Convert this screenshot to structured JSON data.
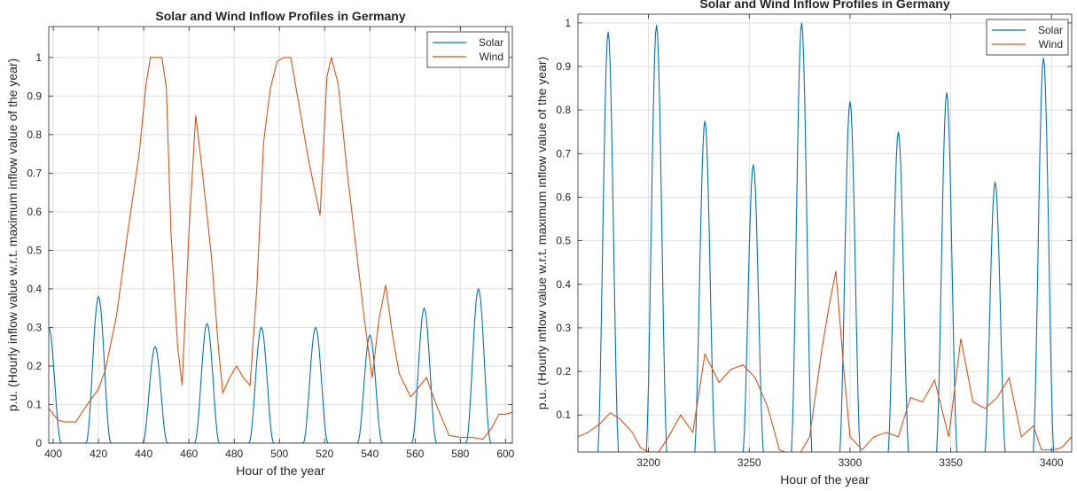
{
  "colors": {
    "solar": "#0072BD",
    "wind": "#D95319",
    "grid": "#DFDFDF",
    "axis": "#262626"
  },
  "chart_data": [
    {
      "type": "line",
      "title": "Solar and Wind Inflow Profiles in Germany",
      "xlabel": "Hour of the year",
      "ylabel": "p.u. (Hourly inflow value w.r.t. maximum inflow value of the year)",
      "xlim": [
        398,
        603
      ],
      "ylim": [
        0,
        1.08
      ],
      "xticks": [
        400,
        420,
        440,
        460,
        480,
        500,
        520,
        540,
        560,
        580,
        600
      ],
      "yticks": [
        0,
        0.1,
        0.2,
        0.3,
        0.4,
        0.5,
        0.6,
        0.7,
        0.8,
        0.9,
        1
      ],
      "grid": true,
      "legend_position": "top-right",
      "series": [
        {
          "name": "Solar",
          "type": "solar_peaks",
          "peaks": [
            [
              398,
              0.3
            ],
            [
              420,
              0.38
            ],
            [
              445,
              0.25
            ],
            [
              468,
              0.31
            ],
            [
              492,
              0.3
            ],
            [
              516,
              0.3
            ],
            [
              540,
              0.28
            ],
            [
              564,
              0.35
            ],
            [
              588,
              0.4
            ]
          ]
        },
        {
          "name": "Wind",
          "points": [
            [
              398,
              0.09
            ],
            [
              402,
              0.06
            ],
            [
              405,
              0.055
            ],
            [
              410,
              0.055
            ],
            [
              415,
              0.1
            ],
            [
              420,
              0.14
            ],
            [
              423,
              0.19
            ],
            [
              428,
              0.33
            ],
            [
              433,
              0.55
            ],
            [
              438,
              0.75
            ],
            [
              441,
              0.93
            ],
            [
              443,
              1.0
            ],
            [
              448,
              1.0
            ],
            [
              450,
              0.92
            ],
            [
              452,
              0.55
            ],
            [
              455,
              0.25
            ],
            [
              457,
              0.15
            ],
            [
              460,
              0.55
            ],
            [
              463,
              0.85
            ],
            [
              466,
              0.7
            ],
            [
              470,
              0.48
            ],
            [
              473,
              0.25
            ],
            [
              475,
              0.13
            ],
            [
              478,
              0.17
            ],
            [
              481,
              0.2
            ],
            [
              484,
              0.17
            ],
            [
              487,
              0.15
            ],
            [
              490,
              0.4
            ],
            [
              493,
              0.78
            ],
            [
              496,
              0.92
            ],
            [
              499,
              0.99
            ],
            [
              502,
              1.0
            ],
            [
              505,
              1.0
            ],
            [
              508,
              0.9
            ],
            [
              513,
              0.73
            ],
            [
              518,
              0.59
            ],
            [
              521,
              0.95
            ],
            [
              523,
              1.0
            ],
            [
              526,
              0.93
            ],
            [
              530,
              0.7
            ],
            [
              534,
              0.5
            ],
            [
              538,
              0.3
            ],
            [
              541,
              0.17
            ],
            [
              544,
              0.32
            ],
            [
              547,
              0.41
            ],
            [
              550,
              0.28
            ],
            [
              553,
              0.18
            ],
            [
              558,
              0.12
            ],
            [
              561,
              0.14
            ],
            [
              565,
              0.17
            ],
            [
              570,
              0.09
            ],
            [
              575,
              0.02
            ],
            [
              580,
              0.015
            ],
            [
              585,
              0.015
            ],
            [
              590,
              0.01
            ],
            [
              594,
              0.04
            ],
            [
              597,
              0.075
            ],
            [
              600,
              0.075
            ],
            [
              603,
              0.08
            ]
          ]
        }
      ]
    },
    {
      "type": "line",
      "title": "Solar and Wind Inflow Profiles in Germany",
      "xlabel": "Hour of the year",
      "ylabel": "p.u. (Hourly inflow value w.r.t. maximum inflow value of the year)",
      "xlim": [
        3165,
        3410
      ],
      "ylim": [
        0.015,
        1.02
      ],
      "xticks": [
        3200,
        3250,
        3300,
        3350,
        3400
      ],
      "yticks": [
        0.1,
        0.2,
        0.3,
        0.4,
        0.5,
        0.6,
        0.7,
        0.8,
        0.9,
        1
      ],
      "grid": true,
      "legend_position": "top-right",
      "series": [
        {
          "name": "Solar",
          "type": "solar_peaks",
          "peaks": [
            [
              3180,
              0.98
            ],
            [
              3204,
              0.995
            ],
            [
              3228,
              0.775
            ],
            [
              3252,
              0.675
            ],
            [
              3276,
              1.0
            ],
            [
              3300,
              0.82
            ],
            [
              3324,
              0.75
            ],
            [
              3348,
              0.84
            ],
            [
              3372,
              0.635
            ],
            [
              3396,
              0.92
            ]
          ]
        },
        {
          "name": "Wind",
          "points": [
            [
              3165,
              0.05
            ],
            [
              3170,
              0.06
            ],
            [
              3176,
              0.08
            ],
            [
              3181,
              0.105
            ],
            [
              3186,
              0.09
            ],
            [
              3192,
              0.06
            ],
            [
              3196,
              0.025
            ],
            [
              3200,
              0.015
            ],
            [
              3205,
              0.015
            ],
            [
              3210,
              0.05
            ],
            [
              3216,
              0.1
            ],
            [
              3222,
              0.06
            ],
            [
              3228,
              0.24
            ],
            [
              3235,
              0.175
            ],
            [
              3241,
              0.205
            ],
            [
              3247,
              0.215
            ],
            [
              3253,
              0.185
            ],
            [
              3259,
              0.12
            ],
            [
              3265,
              0.02
            ],
            [
              3270,
              0.01
            ],
            [
              3275,
              0.01
            ],
            [
              3280,
              0.05
            ],
            [
              3286,
              0.25
            ],
            [
              3290,
              0.36
            ],
            [
              3293,
              0.43
            ],
            [
              3297,
              0.2
            ],
            [
              3300,
              0.05
            ],
            [
              3306,
              0.02
            ],
            [
              3312,
              0.05
            ],
            [
              3318,
              0.06
            ],
            [
              3324,
              0.05
            ],
            [
              3330,
              0.14
            ],
            [
              3336,
              0.13
            ],
            [
              3342,
              0.18
            ],
            [
              3349,
              0.05
            ],
            [
              3355,
              0.275
            ],
            [
              3361,
              0.13
            ],
            [
              3367,
              0.115
            ],
            [
              3373,
              0.14
            ],
            [
              3379,
              0.185
            ],
            [
              3385,
              0.05
            ],
            [
              3391,
              0.075
            ],
            [
              3395,
              0.02
            ],
            [
              3401,
              0.02
            ],
            [
              3405,
              0.025
            ],
            [
              3410,
              0.05
            ]
          ]
        }
      ]
    }
  ]
}
